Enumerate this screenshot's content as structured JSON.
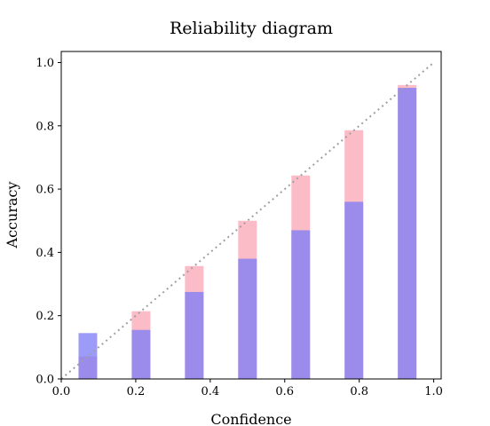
{
  "chart_data": {
    "type": "bar",
    "title": "Reliability diagram",
    "xlabel": "Confidence",
    "ylabel": "Accuracy",
    "xlim": [
      0.0,
      1.02
    ],
    "ylim": [
      0.0,
      1.035
    ],
    "x_ticks": [
      0.0,
      0.2,
      0.4,
      0.6,
      0.8,
      1.0
    ],
    "x_tick_labels": [
      "0.0",
      "0.2",
      "0.4",
      "0.6",
      "0.8",
      "1.0"
    ],
    "y_ticks": [
      0.0,
      0.2,
      0.4,
      0.6,
      0.8,
      1.0
    ],
    "y_tick_labels": [
      "0.0",
      "0.2",
      "0.4",
      "0.6",
      "0.8",
      "1.0"
    ],
    "bar_width": 0.05,
    "x": [
      0.0714,
      0.2143,
      0.3571,
      0.5,
      0.6429,
      0.7857,
      0.9286
    ],
    "series": [
      {
        "values": [
          0.071,
          0.214,
          0.357,
          0.5,
          0.643,
          0.786,
          0.929
        ],
        "color": "#f9a6b5"
      },
      {
        "values": [
          0.145,
          0.155,
          0.275,
          0.38,
          0.47,
          0.56,
          0.92
        ],
        "color": "#7b7bf5"
      }
    ],
    "diagonal": {
      "from": [
        0.0,
        0.0
      ],
      "to": [
        1.0,
        1.0
      ],
      "color": "#a0a0a0",
      "style": "dotted"
    },
    "grid": false,
    "legend": "none"
  }
}
